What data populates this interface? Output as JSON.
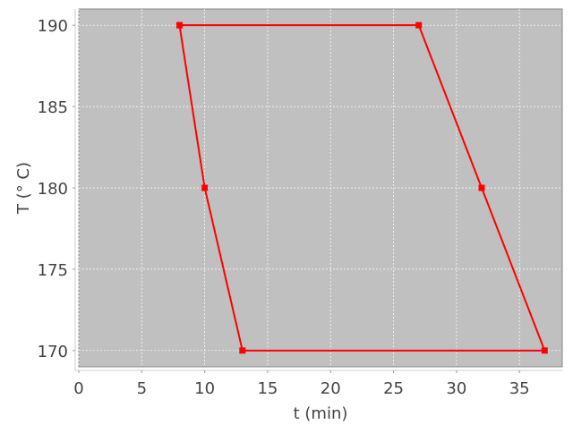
{
  "chart_data": {
    "type": "line",
    "title": "",
    "xlabel": "t (min)",
    "ylabel": "T (° C)",
    "xlim": [
      0,
      38.4
    ],
    "ylim": [
      169,
      191
    ],
    "xticks": [
      0,
      5,
      10,
      15,
      20,
      25,
      30,
      35
    ],
    "yticks": [
      170,
      175,
      180,
      185,
      190
    ],
    "grid": true,
    "series": [
      {
        "x": [
          8,
          27,
          32,
          37,
          13,
          10,
          8
        ],
        "y": [
          190,
          190,
          180,
          170,
          170,
          180,
          190
        ],
        "color": "#ff0000",
        "marker": "square"
      }
    ],
    "colors": {
      "plot_background": "#c0c0c0",
      "grid": "#ffffff"
    }
  }
}
